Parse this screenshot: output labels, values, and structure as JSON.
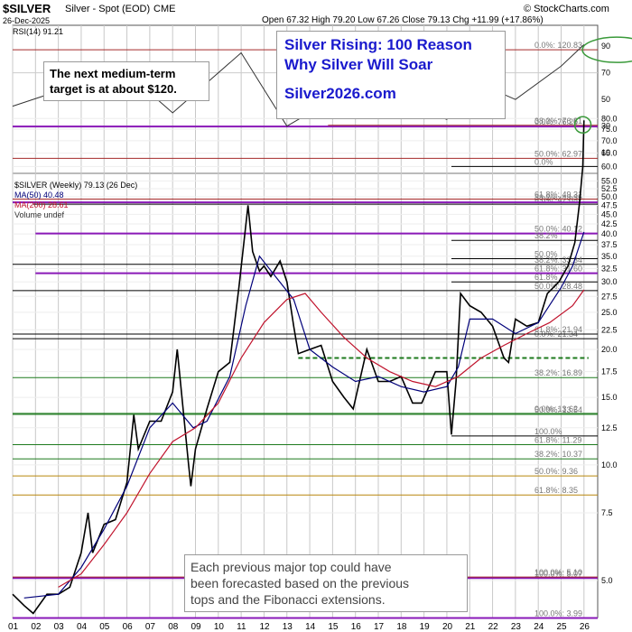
{
  "header": {
    "symbol": "$SILVER",
    "name": "Silver - Spot (EOD)",
    "exchange": "CME",
    "date": "26-Dec-2025",
    "brand": "© StockCharts.com",
    "ohlc": "Open 67.32  High 79.20  Low 67.26  Close 79.13  Chg +11.99 (+17.86%)"
  },
  "title_box": {
    "line1": "Silver Rising: 100 Reason",
    "line2": "Why Silver Will Soar",
    "site": "Silver2026.com"
  },
  "target_note": {
    "line1": "The next medium-term",
    "line2": "target is at about $120."
  },
  "bottom_note": {
    "line1": "Each previous major top could have",
    "line2": "been forecasted based on the previous",
    "line3": "tops and the Fibonacci extensions."
  },
  "legend": {
    "rsi": "RSI(14) 91.21",
    "price": "$SILVER (Weekly) 79.13 (26 Dec)",
    "ma50": "MA(50) 40.48",
    "ma200": "MA(200) 28.61",
    "volume": "Volume undef"
  },
  "colors": {
    "price": "#000000",
    "ma50": "#00007a",
    "ma200": "#c0142d",
    "fib_purple": "#8a19b8",
    "fib_red": "#a52a2a",
    "support_green": "#1e7a1e",
    "fib_label": "#777777",
    "title_blue": "#1a1acd",
    "target_circle": "#3a9a3a"
  },
  "chart_data": {
    "type": "line",
    "scale": "log",
    "ylim": [
      4.0,
      140
    ],
    "xlim": [
      2001.0,
      2026.6
    ],
    "x_ticks": [
      "01",
      "02",
      "03",
      "04",
      "05",
      "06",
      "07",
      "08",
      "09",
      "10",
      "11",
      "12",
      "13",
      "14",
      "15",
      "16",
      "17",
      "18",
      "19",
      "20",
      "21",
      "22",
      "23",
      "24",
      "25",
      "26"
    ],
    "y_ticks": [
      "5.0",
      "7.5",
      "10.0",
      "12.5",
      "15.0",
      "17.5",
      "20.0",
      "22.5",
      "25.0",
      "27.5",
      "30.0",
      "32.5",
      "35.0",
      "37.5",
      "40.0",
      "42.5",
      "45.0",
      "47.5",
      "50.0",
      "52.5",
      "55.0",
      "60.0",
      "65.0",
      "70.0",
      "75.0",
      "80.0"
    ],
    "rsi_ticks": [
      "90",
      "70",
      "50",
      "30",
      "10"
    ],
    "series": [
      {
        "name": "$SILVER (Weekly) 79.13 (26 Dec)",
        "x": [
          2001.0,
          2001.5,
          2001.9,
          2002.5,
          2003.0,
          2003.5,
          2004.0,
          2004.3,
          2004.5,
          2005.0,
          2005.5,
          2006.0,
          2006.3,
          2006.5,
          2007.0,
          2007.5,
          2008.0,
          2008.2,
          2008.7,
          2008.8,
          2009.0,
          2009.5,
          2010.0,
          2010.5,
          2010.9,
          2011.3,
          2011.5,
          2011.8,
          2012.0,
          2012.3,
          2012.7,
          2013.0,
          2013.3,
          2013.5,
          2014.0,
          2014.5,
          2015.0,
          2015.5,
          2015.9,
          2016.5,
          2017.0,
          2017.5,
          2018.0,
          2018.5,
          2018.9,
          2019.5,
          2020.0,
          2020.2,
          2020.4,
          2020.6,
          2021.0,
          2021.5,
          2022.0,
          2022.5,
          2022.7,
          2023.0,
          2023.5,
          2024.0,
          2024.4,
          2024.9,
          2025.3,
          2025.6,
          2025.8,
          2025.95,
          2026.0
        ],
        "values": [
          4.6,
          4.3,
          4.1,
          4.6,
          4.6,
          4.8,
          5.9,
          7.5,
          5.9,
          7.0,
          7.2,
          9.0,
          13.5,
          11.0,
          13.0,
          13.0,
          15.5,
          20.0,
          10.0,
          8.8,
          11.0,
          14.0,
          17.5,
          18.5,
          29.0,
          47.5,
          36.0,
          32.0,
          33.0,
          31.0,
          34.0,
          30.0,
          23.0,
          19.5,
          20.0,
          20.5,
          16.5,
          15.0,
          14.0,
          20.0,
          16.5,
          16.5,
          17.0,
          14.5,
          14.5,
          17.5,
          17.5,
          12.0,
          16.5,
          28.0,
          26.0,
          25.0,
          23.0,
          19.0,
          18.5,
          24.0,
          23.0,
          23.5,
          28.0,
          30.0,
          33.0,
          38.0,
          48.0,
          60.0,
          79.13
        ]
      },
      {
        "name": "MA(50) 40.48",
        "x": [
          2001.5,
          2003.0,
          2004.0,
          2005.0,
          2006.0,
          2007.0,
          2008.0,
          2008.9,
          2009.5,
          2010.5,
          2011.2,
          2011.8,
          2012.5,
          2013.3,
          2014.0,
          2015.0,
          2016.0,
          2017.0,
          2018.0,
          2019.0,
          2020.0,
          2020.5,
          2021.0,
          2022.0,
          2023.0,
          2024.0,
          2025.0,
          2025.5,
          2026.0
        ],
        "values": [
          4.5,
          4.6,
          5.4,
          6.8,
          8.8,
          12.5,
          14.5,
          12.5,
          13.0,
          17.0,
          26.0,
          35.0,
          31.0,
          27.0,
          20.0,
          18.0,
          16.5,
          17.0,
          16.0,
          15.5,
          16.0,
          18.0,
          24.0,
          24.0,
          22.0,
          23.5,
          29.0,
          33.0,
          40.48
        ]
      },
      {
        "name": "MA(200) 28.61",
        "x": [
          2003.0,
          2004.0,
          2005.0,
          2006.0,
          2007.0,
          2008.0,
          2009.0,
          2010.0,
          2011.0,
          2012.0,
          2013.0,
          2013.8,
          2014.5,
          2015.5,
          2016.5,
          2017.5,
          2018.5,
          2019.5,
          2020.5,
          2021.5,
          2022.5,
          2023.5,
          2024.5,
          2025.5,
          2026.0
        ],
        "values": [
          4.8,
          5.2,
          6.2,
          7.5,
          9.5,
          11.5,
          12.5,
          14.5,
          19.0,
          23.5,
          27.0,
          28.0,
          25.0,
          21.5,
          19.0,
          17.5,
          16.5,
          16.0,
          17.0,
          19.0,
          20.5,
          22.0,
          23.5,
          26.0,
          28.61
        ]
      }
    ],
    "rsi_value": 91.21,
    "fib_levels": [
      {
        "label": "0.0%: 120.83",
        "value": 120.83,
        "color": "#a52a2a",
        "start": 2001.0
      },
      {
        "label": "0.0%: 76.26",
        "value": 76.26,
        "color": "#8a19b8",
        "start": 2001.0
      },
      {
        "label": "38.2%: 76.81",
        "value": 76.81,
        "color": "#a52a2a",
        "start": 2014.8
      },
      {
        "label": "50.0%: 62.97",
        "value": 62.97,
        "color": "#a52a2a",
        "start": 2001.0
      },
      {
        "label": "0.0%",
        "value": 60.0,
        "color": "#000000",
        "start": 2020.2
      },
      {
        "label": "0.0%: 47.83",
        "value": 47.83,
        "color": "#000000",
        "start": 2001.9
      },
      {
        "label": "38.2%: 48.35",
        "value": 48.35,
        "color": "#8a19b8",
        "start": 2001.0
      },
      {
        "label": "61.8%: 49.31",
        "value": 49.31,
        "color": "#a52a2a",
        "start": 2001.0
      },
      {
        "label": "50.0%: 40.12",
        "value": 40.12,
        "color": "#8a19b8",
        "start": 2002.0
      },
      {
        "label": "38.2%",
        "value": 38.5,
        "color": "#000000",
        "start": 2020.2
      },
      {
        "label": "50.0%",
        "value": 34.5,
        "color": "#000000",
        "start": 2020.2
      },
      {
        "label": "61.8%: 31.60",
        "value": 31.6,
        "color": "#8a19b8",
        "start": 2002.0
      },
      {
        "label": "61.8%",
        "value": 30.0,
        "color": "#000000",
        "start": 2020.2
      },
      {
        "label": "38.2%: 33.34",
        "value": 33.34,
        "color": "#000000",
        "start": 2001.0
      },
      {
        "label": "50.0%: 28.48",
        "value": 28.48,
        "color": "#000000",
        "start": 2001.0
      },
      {
        "label": "0.0%: 21.34",
        "value": 21.34,
        "color": "#000000",
        "start": 2001.0
      },
      {
        "label": "61.8%: 21.94",
        "value": 21.94,
        "color": "#000000",
        "start": 2001.0
      },
      {
        "label": "38.2%: 16.89",
        "value": 16.89,
        "color": "#1e7a1e",
        "start": 2001.0
      },
      {
        "label": "0.0%: 13.62",
        "value": 13.62,
        "color": "#1e7a1e",
        "start": 2001.0
      },
      {
        "label": "50.0%: 13.54",
        "value": 13.54,
        "color": "#1e7a1e",
        "start": 2001.0
      },
      {
        "label": "61.8%: 11.29",
        "value": 11.29,
        "color": "#1e7a1e",
        "start": 2001.0
      },
      {
        "label": "38.2%: 10.37",
        "value": 10.37,
        "color": "#1e7a1e",
        "start": 2001.0
      },
      {
        "label": "50.0%: 9.36",
        "value": 9.36,
        "color": "#b8860b",
        "start": 2001.0
      },
      {
        "label": "61.8%: 8.35",
        "value": 8.35,
        "color": "#b8860b",
        "start": 2001.0
      },
      {
        "label": "100.0%",
        "value": 11.9,
        "color": "#000000",
        "start": 2020.2
      },
      {
        "label": "100.0%: 5.07",
        "value": 5.07,
        "color": "#8a19b8",
        "start": 2001.0
      },
      {
        "label": "100.0%: 5.10",
        "value": 5.1,
        "color": "#a52a2a",
        "start": 2001.0
      },
      {
        "label": "100.0%: 3.99",
        "value": 3.99,
        "color": "#8a19b8",
        "start": 2001.0
      }
    ],
    "support_line": {
      "value": 19.0,
      "x": [
        2013.5,
        2026.2
      ]
    },
    "target_circle": {
      "x": 2025.95,
      "value": 77.0
    }
  }
}
